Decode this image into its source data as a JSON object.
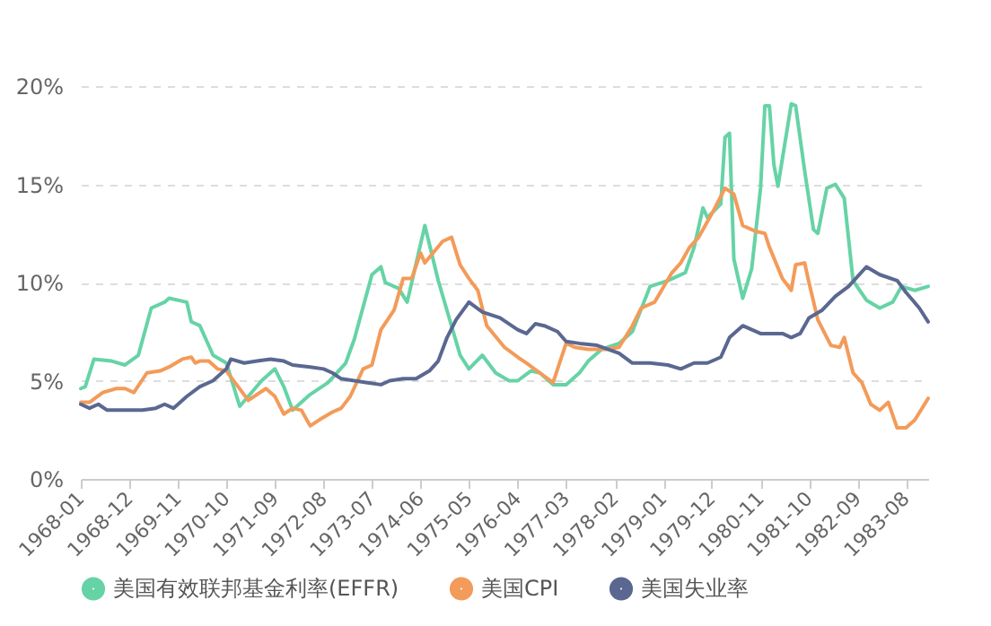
{
  "chart_data": {
    "type": "line",
    "grid": "y",
    "legend": "bottom",
    "marker": "none",
    "line_style": "solid",
    "xlim": [
      "1968-01",
      "1984-01"
    ],
    "xticks": [
      "1968-01",
      "1968-12",
      "1969-11",
      "1970-10",
      "1971-09",
      "1972-08",
      "1973-07",
      "1974-06",
      "1975-05",
      "1976-04",
      "1977-03",
      "1978-02",
      "1979-01",
      "1979-12",
      "1980-11",
      "1981-10",
      "1982-09",
      "1983-08"
    ],
    "ylim": [
      0,
      20
    ],
    "yticks": [
      {
        "value": 0,
        "label": "0%"
      },
      {
        "value": 5,
        "label": "5%"
      },
      {
        "value": 10,
        "label": "10%"
      },
      {
        "value": 15,
        "label": "15%"
      },
      {
        "value": 20,
        "label": "20%"
      }
    ],
    "series": [
      {
        "name": "美国有效联邦基金利率(EFFR)",
        "color": "#66d3a6",
        "x": [
          "1968-01",
          "1968-02",
          "1968-04",
          "1968-08",
          "1968-11",
          "1969-02",
          "1969-05",
          "1969-08",
          "1969-09",
          "1970-01",
          "1970-02",
          "1970-04",
          "1970-07",
          "1970-10",
          "1971-01",
          "1971-03",
          "1971-06",
          "1971-09",
          "1971-11",
          "1972-01",
          "1972-05",
          "1972-09",
          "1973-01",
          "1973-03",
          "1973-07",
          "1973-09",
          "1973-10",
          "1974-01",
          "1974-03",
          "1974-07",
          "1974-10",
          "1975-03",
          "1975-05",
          "1975-08",
          "1975-11",
          "1976-02",
          "1976-04",
          "1976-07",
          "1976-09",
          "1976-12",
          "1977-03",
          "1977-06",
          "1977-08",
          "1977-11",
          "1978-03",
          "1978-06",
          "1978-10",
          "1979-02",
          "1979-06",
          "1979-08",
          "1979-10",
          "1979-11",
          "1980-02",
          "1980-03",
          "1980-04",
          "1980-05",
          "1980-07",
          "1980-09",
          "1980-11",
          "1980-12",
          "1981-01",
          "1981-02",
          "1981-03",
          "1981-06",
          "1981-07",
          "1981-09",
          "1981-11",
          "1981-12",
          "1982-02",
          "1982-04",
          "1982-06",
          "1982-08",
          "1982-11",
          "1983-02",
          "1983-05",
          "1983-07",
          "1983-10",
          "1984-01"
        ],
        "values": [
          4.6,
          4.7,
          6.1,
          6.0,
          5.8,
          6.3,
          8.7,
          9.0,
          9.2,
          9.0,
          8.0,
          7.8,
          6.3,
          5.9,
          3.7,
          4.2,
          5.0,
          5.6,
          4.7,
          3.5,
          4.3,
          4.9,
          5.9,
          7.1,
          10.4,
          10.8,
          10.0,
          9.7,
          9.0,
          12.9,
          10.1,
          6.3,
          5.6,
          6.3,
          5.4,
          5.0,
          5.0,
          5.5,
          5.4,
          4.8,
          4.8,
          5.4,
          6.0,
          6.6,
          6.9,
          7.5,
          9.8,
          10.1,
          10.5,
          11.8,
          13.8,
          13.3,
          14.0,
          17.4,
          17.6,
          11.2,
          9.2,
          10.7,
          14.8,
          19.0,
          19.0,
          16.0,
          14.9,
          19.1,
          19.0,
          15.7,
          12.7,
          12.5,
          14.8,
          15.0,
          14.3,
          10.1,
          9.1,
          8.7,
          9.0,
          9.8,
          9.6,
          9.8
        ]
      },
      {
        "name": "美国CPI",
        "color": "#f39b5a",
        "x": [
          "1968-01",
          "1968-03",
          "1968-06",
          "1968-09",
          "1968-11",
          "1969-01",
          "1969-04",
          "1969-07",
          "1969-09",
          "1969-12",
          "1970-02",
          "1970-03",
          "1970-04",
          "1970-06",
          "1970-08",
          "1970-10",
          "1971-03",
          "1971-07",
          "1971-09",
          "1971-11",
          "1972-01",
          "1972-03",
          "1972-05",
          "1972-07",
          "1972-10",
          "1972-12",
          "1973-02",
          "1973-05",
          "1973-07",
          "1973-09",
          "1973-12",
          "1974-02",
          "1974-04",
          "1974-06",
          "1974-07",
          "1974-11",
          "1975-01",
          "1975-03",
          "1975-05",
          "1975-07",
          "1975-09",
          "1976-01",
          "1976-04",
          "1976-06",
          "1976-09",
          "1976-12",
          "1977-03",
          "1977-05",
          "1977-08",
          "1977-12",
          "1978-03",
          "1978-06",
          "1978-08",
          "1978-11",
          "1979-03",
          "1979-05",
          "1979-07",
          "1979-09",
          "1979-12",
          "1980-03",
          "1980-05",
          "1980-07",
          "1980-10",
          "1980-12",
          "1981-01",
          "1981-04",
          "1981-06",
          "1981-07",
          "1981-09",
          "1981-10",
          "1981-12",
          "1982-03",
          "1982-05",
          "1982-06",
          "1982-08",
          "1982-10",
          "1982-12",
          "1983-02",
          "1983-04",
          "1983-06",
          "1983-08",
          "1983-10",
          "1984-01"
        ],
        "values": [
          3.9,
          3.9,
          4.4,
          4.6,
          4.6,
          4.4,
          5.4,
          5.5,
          5.7,
          6.1,
          6.2,
          5.9,
          6.0,
          6.0,
          5.6,
          5.5,
          4.0,
          4.6,
          4.2,
          3.3,
          3.6,
          3.5,
          2.7,
          3.0,
          3.4,
          3.6,
          4.2,
          5.6,
          5.8,
          7.6,
          8.6,
          10.2,
          10.2,
          11.5,
          11.0,
          12.1,
          12.3,
          10.9,
          10.2,
          9.6,
          7.8,
          6.7,
          6.2,
          5.9,
          5.4,
          4.9,
          6.9,
          6.7,
          6.6,
          6.6,
          6.7,
          7.8,
          8.7,
          9.0,
          10.5,
          11.0,
          11.8,
          12.3,
          13.5,
          14.8,
          14.5,
          12.9,
          12.6,
          12.5,
          11.8,
          10.2,
          9.6,
          10.9,
          11.0,
          10.0,
          8.1,
          6.8,
          6.7,
          7.2,
          5.4,
          4.9,
          3.8,
          3.5,
          3.9,
          2.6,
          2.6,
          3.0,
          4.1
        ]
      },
      {
        "name": "美国失业率",
        "color": "#5a6891",
        "x": [
          "1968-01",
          "1968-03",
          "1968-05",
          "1968-07",
          "1968-12",
          "1969-03",
          "1969-06",
          "1969-08",
          "1969-10",
          "1970-01",
          "1970-04",
          "1970-07",
          "1970-10",
          "1970-11",
          "1971-02",
          "1971-05",
          "1971-08",
          "1971-11",
          "1972-01",
          "1972-05",
          "1972-08",
          "1972-10",
          "1972-12",
          "1973-03",
          "1973-06",
          "1973-09",
          "1973-11",
          "1974-02",
          "1974-05",
          "1974-08",
          "1974-10",
          "1974-12",
          "1975-02",
          "1975-05",
          "1975-08",
          "1975-12",
          "1976-04",
          "1976-06",
          "1976-08",
          "1976-10",
          "1977-01",
          "1977-03",
          "1977-06",
          "1977-10",
          "1978-03",
          "1978-06",
          "1978-10",
          "1979-02",
          "1979-05",
          "1979-08",
          "1979-11",
          "1980-02",
          "1980-04",
          "1980-07",
          "1980-11",
          "1981-01",
          "1981-04",
          "1981-06",
          "1981-08",
          "1981-10",
          "1982-01",
          "1982-04",
          "1982-07",
          "1982-11",
          "1983-02",
          "1983-06",
          "1983-08",
          "1983-11",
          "1984-01"
        ],
        "values": [
          3.8,
          3.6,
          3.8,
          3.5,
          3.5,
          3.5,
          3.6,
          3.8,
          3.6,
          4.2,
          4.7,
          5.0,
          5.6,
          6.1,
          5.9,
          6.0,
          6.1,
          6.0,
          5.8,
          5.7,
          5.6,
          5.4,
          5.1,
          5.0,
          4.9,
          4.8,
          5.0,
          5.1,
          5.1,
          5.5,
          6.0,
          7.2,
          8.1,
          9.0,
          8.5,
          8.2,
          7.6,
          7.4,
          7.9,
          7.8,
          7.5,
          7.0,
          6.9,
          6.8,
          6.4,
          5.9,
          5.9,
          5.8,
          5.6,
          5.9,
          5.9,
          6.2,
          7.2,
          7.8,
          7.4,
          7.4,
          7.4,
          7.2,
          7.4,
          8.2,
          8.6,
          9.3,
          9.8,
          10.8,
          10.4,
          10.1,
          9.5,
          8.7,
          8.0
        ]
      }
    ]
  }
}
